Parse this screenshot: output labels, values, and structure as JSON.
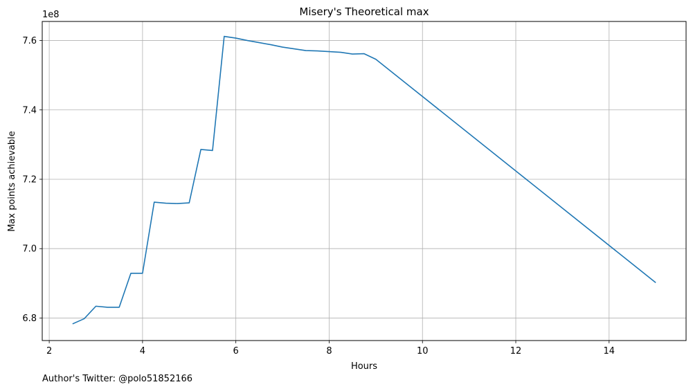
{
  "chart_data": {
    "type": "line",
    "title": "Misery's Theoretical max",
    "xlabel": "Hours",
    "ylabel": "Max points achievable",
    "offset_text": "1e8",
    "footer": "Author's Twitter: @polo51852166",
    "xlim": [
      1.85,
      15.65
    ],
    "ylim": [
      673500000,
      765500000
    ],
    "xticks": [
      2,
      4,
      6,
      8,
      10,
      12,
      14
    ],
    "xtick_labels": [
      "2",
      "4",
      "6",
      "8",
      "10",
      "12",
      "14"
    ],
    "yticks": [
      680000000,
      700000000,
      720000000,
      740000000,
      760000000
    ],
    "ytick_labels": [
      "6.8",
      "7.0",
      "7.2",
      "7.4",
      "7.6"
    ],
    "grid": true,
    "line_color": "#1f77b4",
    "series": [
      {
        "x": [
          2.5,
          2.75,
          3.0,
          3.25,
          3.5,
          3.75,
          4.0,
          4.25,
          4.5,
          4.75,
          5.0,
          5.25,
          5.5,
          5.75,
          6.0,
          6.25,
          6.5,
          6.75,
          7.0,
          7.25,
          7.5,
          7.75,
          8.0,
          8.25,
          8.5,
          8.75,
          9.0,
          15.0
        ],
        "y": [
          678300000,
          679800000,
          683400000,
          683100000,
          683100000,
          692900000,
          692900000,
          713400000,
          713100000,
          713000000,
          713200000,
          728600000,
          728300000,
          761200000,
          760700000,
          760000000,
          759400000,
          758800000,
          758100000,
          757600000,
          757100000,
          757000000,
          756800000,
          756600000,
          756100000,
          756200000,
          754600000,
          690200000
        ]
      }
    ]
  }
}
